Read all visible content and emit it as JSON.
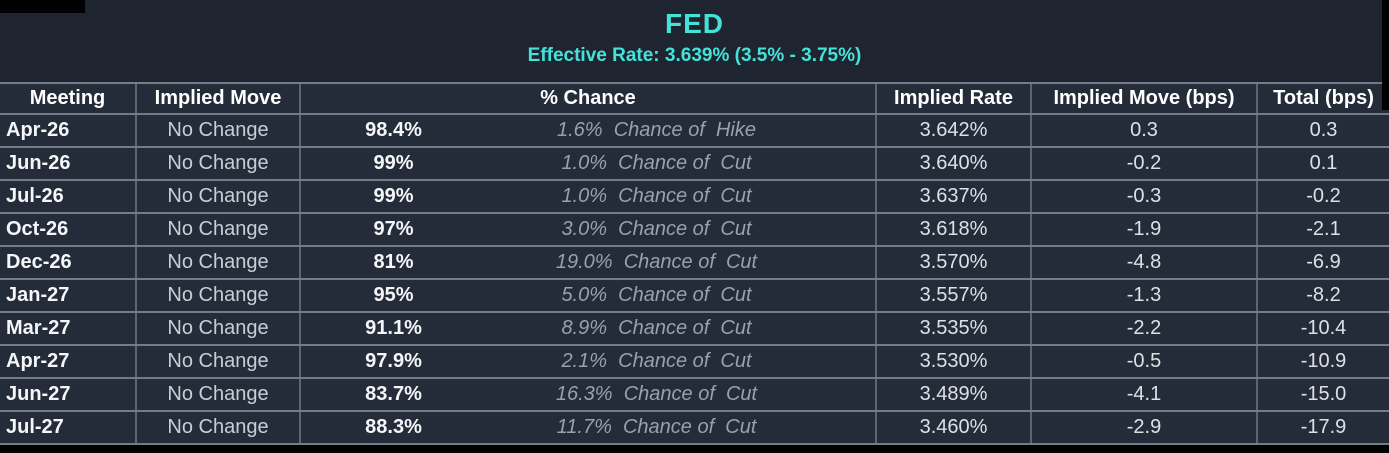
{
  "title": "FED",
  "subtitle": "Effective Rate: 3.639% (3.5% - 3.75%)",
  "colors": {
    "accent": "#44E2D8",
    "background": "#1f2530",
    "row_bg": "#242b39",
    "border": "#747c8a"
  },
  "table": {
    "headers": [
      "Meeting",
      "Implied Move",
      "% Chance",
      "Implied Rate",
      "Implied Move (bps)",
      "Total (bps)"
    ],
    "rows": [
      {
        "meeting": "Apr-26",
        "implied_move": "No Change",
        "chance_value": "98.4%",
        "chance_note": "1.6%  Chance of  Hike",
        "implied_rate": "3.642%",
        "move_bps": "0.3",
        "total_bps": "0.3"
      },
      {
        "meeting": "Jun-26",
        "implied_move": "No Change",
        "chance_value": "99%",
        "chance_note": "1.0%  Chance of  Cut",
        "implied_rate": "3.640%",
        "move_bps": "-0.2",
        "total_bps": "0.1"
      },
      {
        "meeting": "Jul-26",
        "implied_move": "No Change",
        "chance_value": "99%",
        "chance_note": "1.0%  Chance of  Cut",
        "implied_rate": "3.637%",
        "move_bps": "-0.3",
        "total_bps": "-0.2"
      },
      {
        "meeting": "Oct-26",
        "implied_move": "No Change",
        "chance_value": "97%",
        "chance_note": "3.0%  Chance of  Cut",
        "implied_rate": "3.618%",
        "move_bps": "-1.9",
        "total_bps": "-2.1"
      },
      {
        "meeting": "Dec-26",
        "implied_move": "No Change",
        "chance_value": "81%",
        "chance_note": "19.0%  Chance of  Cut",
        "implied_rate": "3.570%",
        "move_bps": "-4.8",
        "total_bps": "-6.9"
      },
      {
        "meeting": "Jan-27",
        "implied_move": "No Change",
        "chance_value": "95%",
        "chance_note": "5.0%  Chance of  Cut",
        "implied_rate": "3.557%",
        "move_bps": "-1.3",
        "total_bps": "-8.2"
      },
      {
        "meeting": "Mar-27",
        "implied_move": "No Change",
        "chance_value": "91.1%",
        "chance_note": "8.9%  Chance of  Cut",
        "implied_rate": "3.535%",
        "move_bps": "-2.2",
        "total_bps": "-10.4"
      },
      {
        "meeting": "Apr-27",
        "implied_move": "No Change",
        "chance_value": "97.9%",
        "chance_note": "2.1%  Chance of  Cut",
        "implied_rate": "3.530%",
        "move_bps": "-0.5",
        "total_bps": "-10.9"
      },
      {
        "meeting": "Jun-27",
        "implied_move": "No Change",
        "chance_value": "83.7%",
        "chance_note": "16.3%  Chance of  Cut",
        "implied_rate": "3.489%",
        "move_bps": "-4.1",
        "total_bps": "-15.0"
      },
      {
        "meeting": "Jul-27",
        "implied_move": "No Change",
        "chance_value": "88.3%",
        "chance_note": "11.7%  Chance of  Cut",
        "implied_rate": "3.460%",
        "move_bps": "-2.9",
        "total_bps": "-17.9"
      }
    ]
  }
}
